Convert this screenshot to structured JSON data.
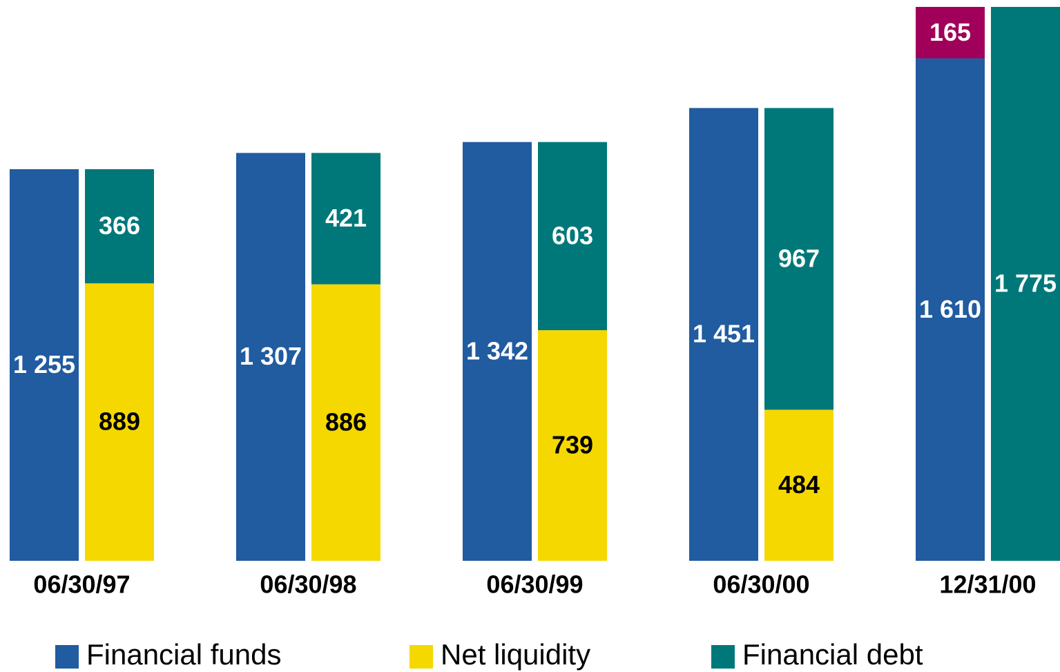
{
  "chart_data": {
    "type": "bar",
    "categories": [
      "06/30/97",
      "06/30/98",
      "06/30/99",
      "06/30/00",
      "12/31/00"
    ],
    "series": [
      {
        "name": "Financial funds",
        "color": "#215ba0",
        "stack": 0,
        "label_color": "#ffffff",
        "values": [
          1255,
          1307,
          1342,
          1451,
          1610
        ],
        "value_labels": [
          "1 255",
          "1 307",
          "1 342",
          "1 451",
          "1 610"
        ]
      },
      {
        "name": "Net liquidity",
        "color": "#f5d800",
        "stack": 1,
        "label_color": "#000000",
        "values": [
          889,
          886,
          739,
          484,
          null
        ]
      },
      {
        "name": "Financial debt",
        "color": "#00787a",
        "stack": 1,
        "label_color": "#ffffff",
        "values": [
          366,
          421,
          603,
          967,
          1775
        ],
        "value_labels": [
          "366",
          "421",
          "603",
          "967",
          "1 775"
        ]
      },
      {
        "color": "#a0005a",
        "stack": 0,
        "label_color": "#ffffff",
        "values": [
          null,
          null,
          null,
          null,
          165
        ]
      }
    ]
  }
}
